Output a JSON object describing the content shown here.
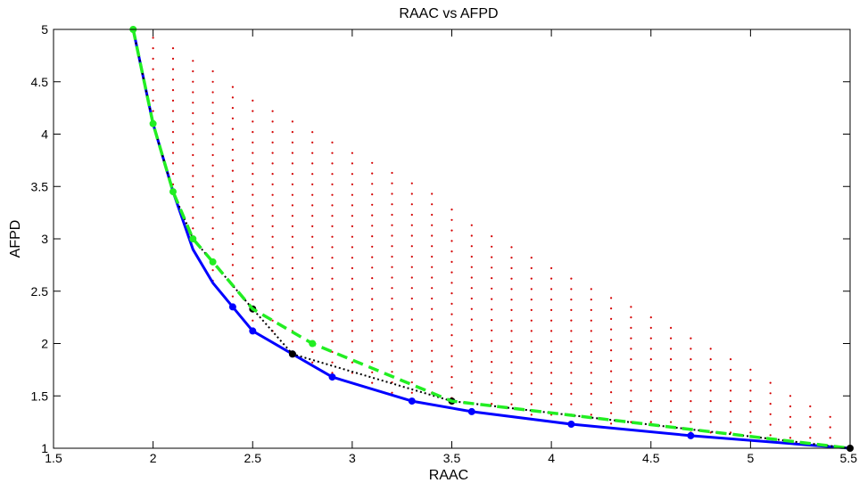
{
  "chart_data": {
    "type": "scatter",
    "title": "RAAC vs AFPD",
    "xlabel": "RAAC",
    "ylabel": "AFPD",
    "xlim": [
      1.5,
      5.5
    ],
    "ylim": [
      1,
      5
    ],
    "xticks": [
      "1.5",
      "2",
      "2.5",
      "3",
      "3.5",
      "4",
      "4.5",
      "5",
      "5.5"
    ],
    "yticks": [
      "1",
      "1.5",
      "2",
      "2.5",
      "3",
      "3.5",
      "4",
      "4.5",
      "5"
    ],
    "grid": false,
    "legend": "none",
    "scatter_cloud": {
      "color": "#d40000",
      "marker": "dot",
      "x_start": 2.0,
      "x_end": 5.4,
      "x_step": 0.1,
      "y_bottom_offset": 0.02,
      "y_step": 0.1,
      "upper_bound": {
        "x": [
          2.0,
          2.1,
          2.2,
          2.3,
          2.4,
          2.5,
          2.6,
          2.7,
          2.8,
          2.9,
          3.0,
          3.2,
          3.4,
          3.6,
          3.8,
          4.0,
          4.2,
          4.4,
          4.6,
          4.8,
          5.0,
          5.2,
          5.4
        ],
        "y": [
          4.92,
          4.82,
          4.7,
          4.6,
          4.45,
          4.32,
          4.22,
          4.12,
          4.02,
          3.92,
          3.82,
          3.63,
          3.43,
          3.13,
          2.92,
          2.72,
          2.52,
          2.35,
          2.15,
          1.95,
          1.75,
          1.5,
          1.3
        ]
      },
      "lower_bound": {
        "x": [
          2.0,
          2.1,
          2.2,
          2.3,
          2.4,
          2.5,
          2.7,
          2.9,
          3.3,
          3.6,
          4.1,
          4.7,
          5.5
        ],
        "y": [
          4.1,
          3.45,
          2.9,
          2.58,
          2.35,
          2.12,
          1.9,
          1.68,
          1.45,
          1.35,
          1.23,
          1.12,
          1.0
        ]
      }
    },
    "series": [
      {
        "color": "#0000ff",
        "style": "solid",
        "marker": "circle",
        "x": [
          1.9,
          2.0,
          2.1,
          2.2,
          2.3,
          2.4,
          2.5,
          2.7,
          2.9,
          3.3,
          3.6,
          4.1,
          4.7,
          5.5
        ],
        "y": [
          5.0,
          4.1,
          3.45,
          2.9,
          2.58,
          2.35,
          2.12,
          1.9,
          1.68,
          1.45,
          1.35,
          1.23,
          1.12,
          1.0
        ],
        "marker_x": [
          2.4,
          2.5,
          2.7,
          2.9,
          3.3,
          3.6,
          4.1,
          4.7
        ],
        "marker_y": [
          2.35,
          2.12,
          1.9,
          1.68,
          1.45,
          1.35,
          1.23,
          1.12
        ]
      },
      {
        "color": "#000000",
        "style": "dotted",
        "marker": "circle",
        "x": [
          1.9,
          2.0,
          2.1,
          2.2,
          2.5,
          2.7,
          3.5,
          5.5
        ],
        "y": [
          5.0,
          4.1,
          3.45,
          3.0,
          2.33,
          1.9,
          1.45,
          1.0
        ],
        "marker_x": [
          2.5,
          2.7,
          3.5,
          5.5
        ],
        "marker_y": [
          2.33,
          1.9,
          1.45,
          1.0
        ]
      },
      {
        "color": "#22ee22",
        "style": "dashed",
        "marker": "circle",
        "x": [
          1.9,
          2.0,
          2.1,
          2.2,
          2.3,
          2.5,
          2.8,
          3.5,
          5.5
        ],
        "y": [
          5.0,
          4.1,
          3.45,
          3.0,
          2.78,
          2.33,
          2.0,
          1.45,
          1.0
        ],
        "marker_x": [
          1.9,
          2.0,
          2.1,
          2.2,
          2.3,
          2.8
        ],
        "marker_y": [
          5.0,
          4.1,
          3.45,
          3.0,
          2.78,
          2.0
        ]
      }
    ]
  }
}
